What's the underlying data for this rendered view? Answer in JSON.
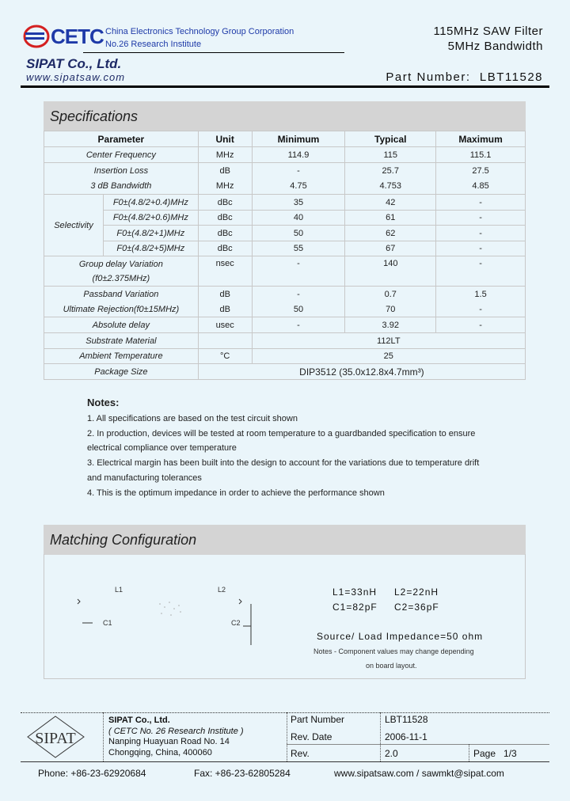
{
  "header": {
    "logo_text": "CETC",
    "corp_line1": "China Electronics Technology Group Corporation",
    "corp_line2": "No.26 Research Institute",
    "company": "SIPAT Co., Ltd.",
    "website": "www.sipatsaw.com",
    "title_line1": "115MHz SAW Filter",
    "title_line2": "5MHz Bandwidth",
    "part_number_label": "Part Number:",
    "part_number": "LBT11528"
  },
  "specs": {
    "title": "Specifications",
    "columns": [
      "Parameter",
      "Unit",
      "Minimum",
      "Typical",
      "Maximum"
    ],
    "rows": [
      {
        "param": "Center Frequency",
        "unit": "MHz",
        "min": "114.9",
        "typ": "115",
        "max": "115.1"
      },
      {
        "param": "Insertion Loss",
        "unit": "dB",
        "min": "-",
        "typ": "25.7",
        "max": "27.5"
      },
      {
        "param": "3 dB Bandwidth",
        "unit": "MHz",
        "min": "4.75",
        "typ": "4.753",
        "max": "4.85"
      },
      {
        "param": "F0±(4.8/2+0.4)MHz",
        "unit": "dBc",
        "min": "35",
        "typ": "42",
        "max": "-"
      },
      {
        "param": "F0±(4.8/2+0.6)MHz",
        "unit": "dBc",
        "min": "40",
        "typ": "61",
        "max": "-"
      },
      {
        "param": "F0±(4.8/2+1)MHz",
        "unit": "dBc",
        "min": "50",
        "typ": "62",
        "max": "-"
      },
      {
        "param": "F0±(4.8/2+5)MHz",
        "unit": "dBc",
        "min": "55",
        "typ": "67",
        "max": "-"
      },
      {
        "param": "Group delay Variation",
        "param2": "(f0±2.375MHz)",
        "unit": "nsec",
        "min": "-",
        "typ": "140",
        "max": "-"
      },
      {
        "param": "Passband Variation",
        "unit": "dB",
        "min": "-",
        "typ": "0.7",
        "max": "1.5"
      },
      {
        "param": "Ultimate Rejection(f0±15MHz)",
        "unit": "dB",
        "min": "50",
        "typ": "70",
        "max": "-"
      },
      {
        "param": "Absolute  delay",
        "unit": "usec",
        "min": "-",
        "typ": "3.92",
        "max": "-"
      },
      {
        "param": "Substrate Material",
        "unit": "",
        "value": "112LT"
      },
      {
        "param": "Ambient Temperature",
        "unit": "°C",
        "value": "25"
      },
      {
        "param": "Package Size",
        "value": "DIP3512    (35.0x12.8x4.7mm³)"
      }
    ],
    "selectivity_label": "Selectivity"
  },
  "notes": {
    "title": "Notes:",
    "items": [
      "1. All specifications are based on the test circuit shown",
      "2. In production, devices will be tested at room temperature to a guardbanded specification to ensure",
      "electrical compliance over temperature",
      "3. Electrical margin has been built into the design to account for the variations due to temperature drift",
      "and manufacturing tolerances",
      "4. This is the optimum impedance in order to achieve the performance shown"
    ]
  },
  "matching": {
    "title": "Matching Configuration",
    "l1": "L1=33nH",
    "l2": "L2=22nH",
    "c1": "C1=82pF",
    "c2": "C2=36pF",
    "impedance": "Source/ Load Impedance=50 ohm",
    "note1": "Notes - Component values may change depending",
    "note2": "on board layout.",
    "lbl_l1": "L1",
    "lbl_l2": "L2",
    "lbl_c1": "C1",
    "lbl_c2": "C2"
  },
  "footer": {
    "logo_text": "SIPAT",
    "company": "SIPAT Co., Ltd.",
    "institute": "( CETC No. 26 Research Institute )",
    "address1": "Nanping Huayuan Road No. 14",
    "address2": "Chongqing, China, 400060",
    "pn_label": "Part Number",
    "pn": "LBT11528",
    "date_label": "Rev. Date",
    "date": "2006-11-1",
    "rev_label": "Rev.",
    "rev": "2.0",
    "page_label": "Page",
    "page": "1/3",
    "phone": "Phone: +86-23-62920684",
    "fax": "Fax: +86-23-62805284",
    "contact": "www.sipatsaw.com / sawmkt@sipat.com"
  }
}
